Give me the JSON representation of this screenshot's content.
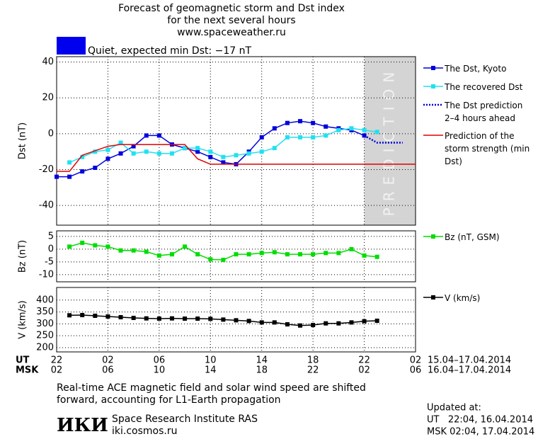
{
  "header": {
    "title_lines": [
      "Forecast of geomagnetic storm and Dst index",
      "for the next several hours",
      "www.spaceweather.ru"
    ],
    "status": "Quiet, expected min Dst: −17 nT",
    "status_color": "#0000ee"
  },
  "time_axis": {
    "xlim": [
      0,
      28
    ],
    "ut_label": "UT",
    "msk_label": "MSK",
    "ut_ticks": [
      {
        "value": 0,
        "label": "22"
      },
      {
        "value": 4,
        "label": "02"
      },
      {
        "value": 8,
        "label": "06"
      },
      {
        "value": 12,
        "label": "10"
      },
      {
        "value": 16,
        "label": "14"
      },
      {
        "value": 20,
        "label": "18"
      },
      {
        "value": 24,
        "label": "22"
      },
      {
        "value": 28,
        "label": "02"
      }
    ],
    "msk_ticks": [
      {
        "value": 0,
        "label": "02"
      },
      {
        "value": 4,
        "label": "06"
      },
      {
        "value": 8,
        "label": "10"
      },
      {
        "value": 12,
        "label": "14"
      },
      {
        "value": 16,
        "label": "18"
      },
      {
        "value": 20,
        "label": "22"
      },
      {
        "value": 24,
        "label": "02"
      },
      {
        "value": 28,
        "label": "06"
      }
    ],
    "ut_range": "15.04–17.04.2014",
    "msk_range": "16.04–17.04.2014"
  },
  "chart_data": [
    {
      "type": "line",
      "ylabel": "Dst (nT)",
      "ylim": [
        -51,
        43
      ],
      "yticks": [
        -40,
        -20,
        0,
        20,
        40
      ],
      "grid": true,
      "prediction_region": [
        24,
        28
      ],
      "prediction_label": "PREDICTION",
      "series": [
        {
          "name": "The Dst, Kyoto",
          "color": "#0000dd",
          "marker": "square",
          "dotted": false,
          "x": [
            0,
            1,
            2,
            3,
            4,
            5,
            6,
            7,
            8,
            9,
            10,
            11,
            12,
            13,
            14,
            15,
            16,
            17,
            18,
            19,
            20,
            21,
            22,
            23,
            24
          ],
          "values": [
            -24,
            -24,
            -21,
            -19,
            -14,
            -11,
            -7,
            -1,
            -1,
            -6,
            -8,
            -10,
            -13,
            -16,
            -17,
            -10,
            -2,
            3,
            6,
            7,
            6,
            4,
            3,
            2,
            -1
          ]
        },
        {
          "name": "The recovered Dst",
          "color": "#22e0f0",
          "marker": "square",
          "dotted": false,
          "x": [
            1,
            2,
            3,
            4,
            5,
            6,
            7,
            8,
            9,
            10,
            11,
            12,
            13,
            14,
            15,
            16,
            17,
            18,
            19,
            20,
            21,
            22,
            23,
            24,
            25
          ],
          "values": [
            -16,
            -13,
            -10,
            -9,
            -5,
            -11,
            -10,
            -11,
            -11,
            -8,
            -8,
            -10,
            -13,
            -12,
            -11,
            -10,
            -8,
            -2,
            -2,
            -2,
            -1,
            2,
            3,
            2,
            1
          ]
        },
        {
          "name": "The Dst prediction 2–4 hours ahead",
          "color": "#0000dd",
          "marker": "none",
          "dotted": true,
          "x": [
            24,
            25,
            26,
            27
          ],
          "values": [
            -1,
            -5,
            -5,
            -5
          ]
        },
        {
          "name": "Prediction of the storm strength (min Dst)",
          "color": "#dd0000",
          "marker": "none",
          "dotted": false,
          "x": [
            0,
            1,
            2,
            4,
            5,
            10,
            11,
            12,
            28
          ],
          "values": [
            -21,
            -21,
            -12,
            -7,
            -6,
            -6,
            -14,
            -17,
            -17
          ]
        }
      ]
    },
    {
      "type": "line",
      "ylabel": "Bz (nT)",
      "ylim": [
        -12.8,
        7.2
      ],
      "yticks": [
        5,
        0,
        -5,
        -10
      ],
      "grid": true,
      "series": [
        {
          "name": "Bz (nT, GSM)",
          "color": "#00dd00",
          "marker": "square",
          "dotted": false,
          "x": [
            1,
            2,
            3,
            4,
            5,
            6,
            7,
            8,
            9,
            10,
            11,
            12,
            13,
            14,
            15,
            16,
            17,
            18,
            19,
            20,
            21,
            22,
            23,
            24,
            25
          ],
          "values": [
            1,
            2.5,
            1.5,
            1,
            -0.5,
            -0.5,
            -1,
            -2.5,
            -2,
            1,
            -2,
            -4,
            -4.2,
            -2,
            -2,
            -1.5,
            -1.2,
            -2,
            -2,
            -2,
            -1.5,
            -1.5,
            0,
            -2.5,
            -3
          ]
        }
      ]
    },
    {
      "type": "line",
      "ylabel": "V (km/s)",
      "ylim": [
        182,
        453
      ],
      "yticks": [
        400,
        350,
        300,
        250,
        200
      ],
      "grid": true,
      "series": [
        {
          "name": "V (km/s)",
          "color": "#000000",
          "marker": "square",
          "dotted": false,
          "x": [
            1,
            2,
            3,
            4,
            5,
            6,
            7,
            8,
            9,
            10,
            11,
            12,
            13,
            14,
            15,
            16,
            17,
            18,
            19,
            20,
            21,
            22,
            23,
            24,
            25
          ],
          "values": [
            336,
            337,
            334,
            331,
            328,
            325,
            323,
            322,
            323,
            322,
            322,
            321,
            318,
            315,
            312,
            306,
            306,
            298,
            293,
            295,
            302,
            302,
            306,
            311,
            313
          ]
        }
      ]
    }
  ],
  "footer": {
    "note_lines": [
      "Real-time ACE magnetic field and solar wind speed are shifted",
      "forward, accounting for L1-Earth propagation"
    ],
    "logo": "ИКИ",
    "institute": "Space Research Institute RAS",
    "site": "iki.cosmos.ru",
    "updated_lines": [
      "Updated at:",
      "UT   22:04, 16.04.2014",
      "MSK 02:04, 17.04.2014"
    ]
  }
}
